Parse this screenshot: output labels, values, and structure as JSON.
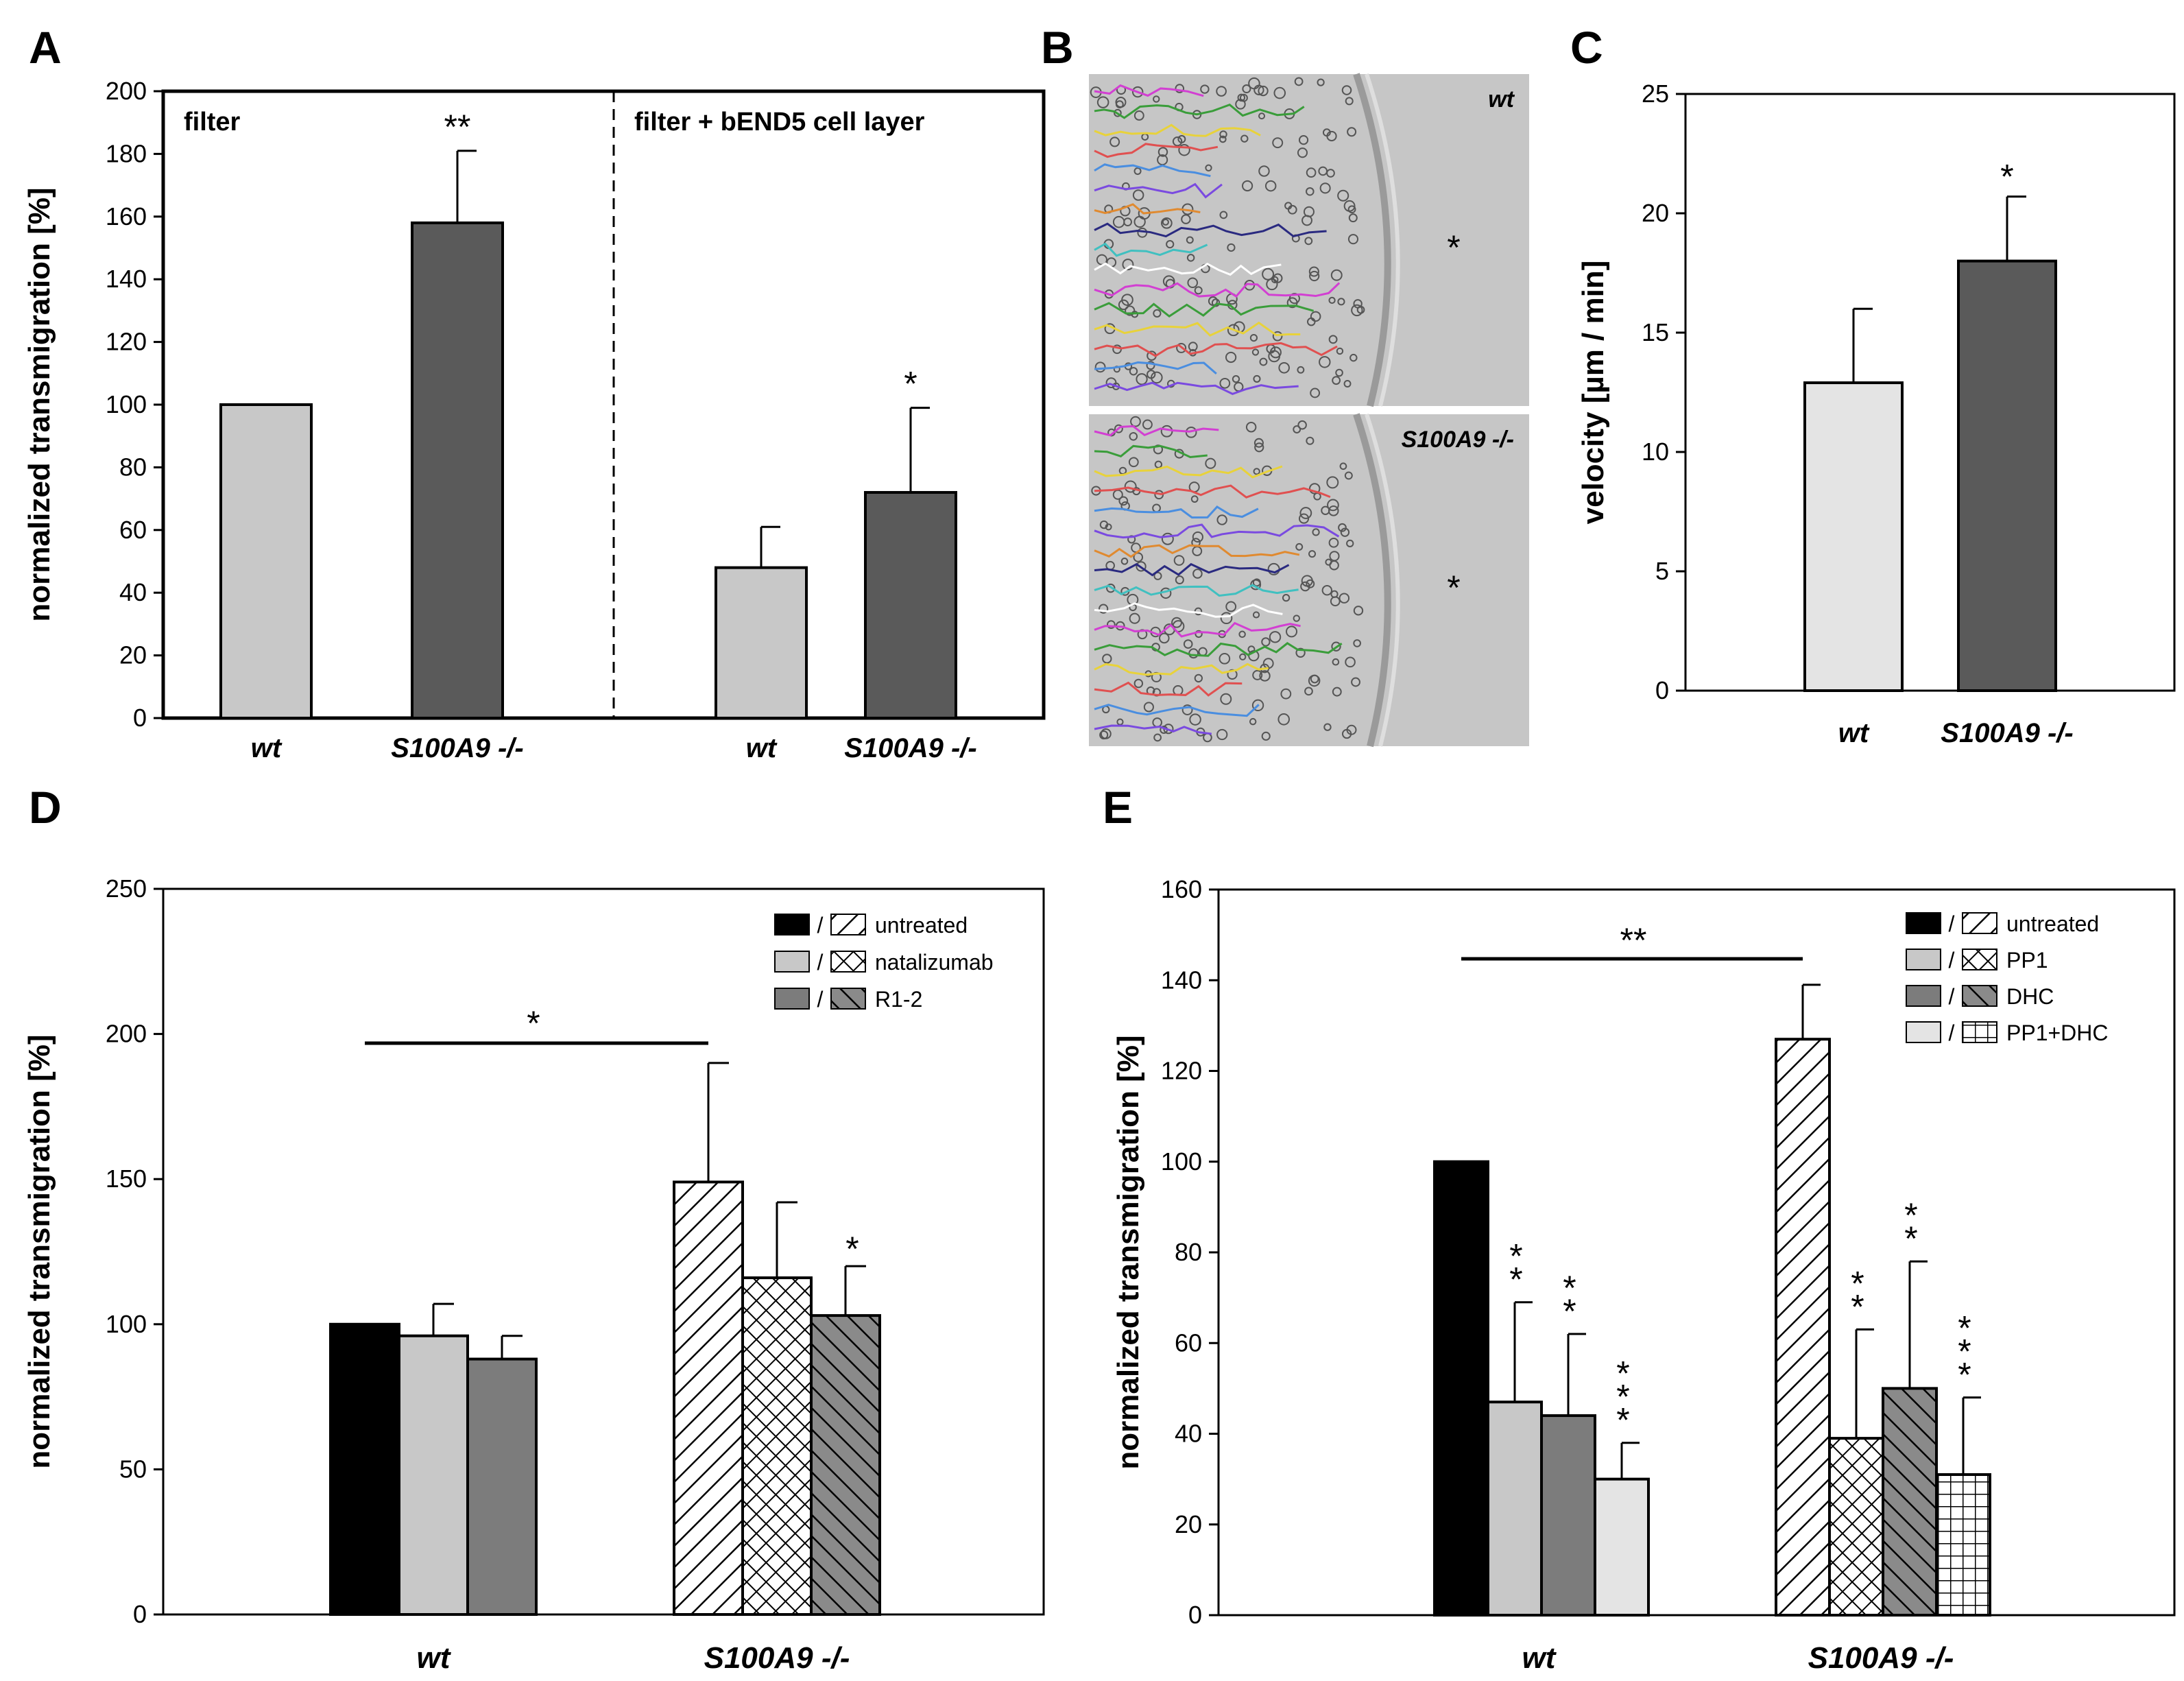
{
  "colors": {
    "black": "#000000",
    "light_gray": "#c8c8c8",
    "dark_gray": "#5a5a5a",
    "mid_gray": "#7c7c7c",
    "pale_gray": "#e4e4e4",
    "micrograph_bg": "#c6c6c6"
  },
  "panels": {
    "A": "A",
    "B": "B",
    "C": "C",
    "D": "D",
    "E": "E"
  },
  "chart_data": [
    {
      "panel": "A",
      "type": "bar",
      "ylabel": "normalized transmigration [%]",
      "ylim": [
        0,
        200
      ],
      "yticks": [
        "0",
        "20",
        "40",
        "60",
        "80",
        "100",
        "120",
        "140",
        "160",
        "180",
        "200"
      ],
      "regions": [
        {
          "label": "filter",
          "categories": [
            "wt",
            "S100A9 -/-"
          ],
          "values": [
            100,
            158
          ],
          "errors": [
            0,
            23
          ],
          "significance": [
            "",
            "**"
          ]
        },
        {
          "label": "filter + bEND5 cell layer",
          "categories": [
            "wt",
            "S100A9 -/-"
          ],
          "values": [
            48,
            72
          ],
          "errors": [
            13,
            27
          ],
          "significance": [
            "",
            "*"
          ]
        }
      ]
    },
    {
      "panel": "B",
      "type": "image",
      "images": [
        {
          "label": "wt",
          "marker": "*"
        },
        {
          "label": "S100A9 -/-",
          "marker": "*"
        }
      ]
    },
    {
      "panel": "C",
      "type": "bar",
      "ylabel": "velocity [µm / min]",
      "ylim": [
        0,
        25
      ],
      "yticks": [
        "0",
        "5",
        "10",
        "15",
        "20",
        "25"
      ],
      "categories": [
        "wt",
        "S100A9 -/-"
      ],
      "values": [
        12.9,
        18.0
      ],
      "errors": [
        3.1,
        2.7
      ],
      "significance": [
        "",
        "*"
      ]
    },
    {
      "panel": "D",
      "type": "bar",
      "ylabel": "normalized transmigration [%]",
      "ylim": [
        0,
        250
      ],
      "yticks": [
        "0",
        "50",
        "100",
        "150",
        "200",
        "250"
      ],
      "categories": [
        "wt",
        "S100A9 -/-"
      ],
      "series": [
        {
          "name": "untreated",
          "values": [
            100,
            149
          ],
          "errors": [
            0,
            41
          ],
          "significance": [
            "",
            ""
          ]
        },
        {
          "name": "natalizumab",
          "values": [
            96,
            116
          ],
          "errors": [
            11,
            26
          ],
          "significance": [
            "",
            ""
          ]
        },
        {
          "name": "R1-2",
          "values": [
            88,
            103
          ],
          "errors": [
            8,
            17
          ],
          "significance": [
            "",
            "*"
          ]
        }
      ],
      "legend_sep": "/",
      "bracket": {
        "label": "*",
        "from": "wt untreated",
        "to": "S100A9 -/- untreated"
      }
    },
    {
      "panel": "E",
      "type": "bar",
      "ylabel": "normalized transmigration [%]",
      "ylim": [
        0,
        160
      ],
      "yticks": [
        "0",
        "20",
        "40",
        "60",
        "80",
        "100",
        "120",
        "140",
        "160"
      ],
      "categories": [
        "wt",
        "S100A9 -/-"
      ],
      "series": [
        {
          "name": "untreated",
          "values": [
            100,
            127
          ],
          "errors": [
            0,
            12
          ],
          "significance": [
            "",
            ""
          ]
        },
        {
          "name": "PP1",
          "values": [
            47,
            39
          ],
          "errors": [
            22,
            24
          ],
          "significance": [
            "**",
            "**"
          ]
        },
        {
          "name": "DHC",
          "values": [
            44,
            50
          ],
          "errors": [
            18,
            28
          ],
          "significance": [
            "**",
            "**"
          ]
        },
        {
          "name": "PP1+DHC",
          "values": [
            30,
            31
          ],
          "errors": [
            8,
            17
          ],
          "significance": [
            "***",
            "***"
          ]
        }
      ],
      "legend_sep": "/",
      "bracket": {
        "label": "**",
        "from": "wt untreated",
        "to": "S100A9 -/- untreated"
      }
    }
  ]
}
